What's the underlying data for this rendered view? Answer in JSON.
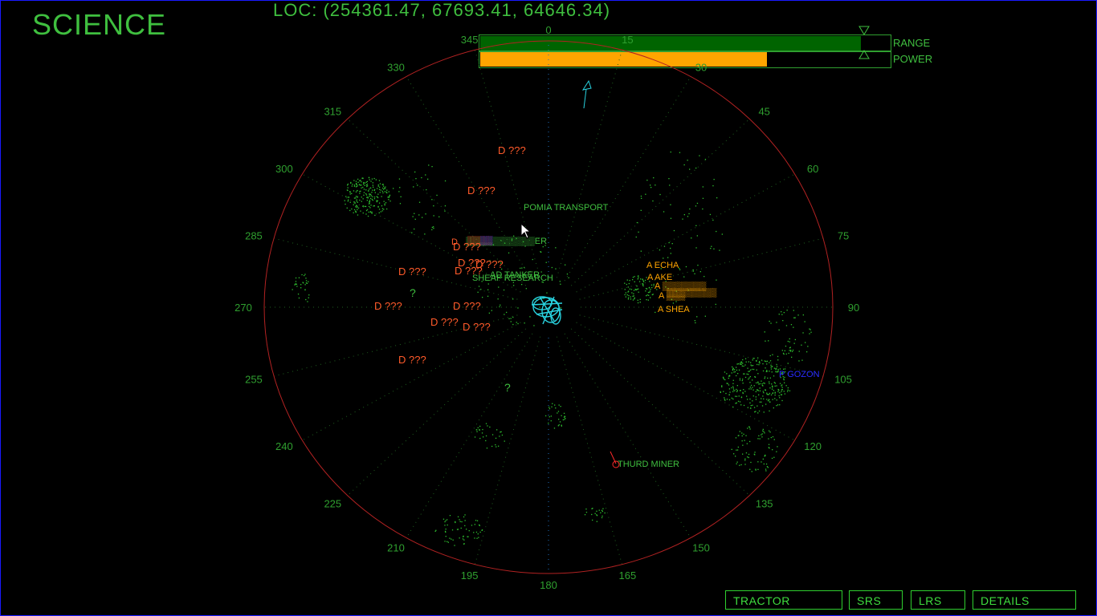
{
  "screen": {
    "title": "SCIENCE",
    "location": "LOC: (254361.47, 67693.41, 64646.34)"
  },
  "sliders": {
    "range": {
      "label": "RANGE",
      "level": 0.93,
      "color": "#006400"
    },
    "power": {
      "label": "POWER",
      "level": 0.7,
      "color": "#ffa500"
    }
  },
  "radar": {
    "ring_color": "#b22222",
    "bearings": [
      "0",
      "15",
      "30",
      "45",
      "60",
      "75",
      "90",
      "105",
      "120",
      "135",
      "150",
      "165",
      "180",
      "195",
      "210",
      "225",
      "240",
      "255",
      "270",
      "285",
      "300",
      "315",
      "330",
      "345"
    ],
    "contacts": [
      {
        "name": "D ???",
        "color": "#ff5a2a"
      },
      {
        "name": "D ???",
        "color": "#ff5a2a"
      },
      {
        "name": "POMIA TRANSPORT",
        "color": "#3fbf3f"
      },
      {
        "name": "D ???",
        "color": "#ff5a2a"
      },
      {
        "name": "D ???",
        "color": "#ff5a2a"
      },
      {
        "name": "D ???",
        "color": "#ff5a2a"
      },
      {
        "name": "D ???",
        "color": "#ff5a2a"
      },
      {
        "name": "D ???",
        "color": "#ff5a2a"
      },
      {
        "name": "D ???",
        "color": "#ff5a2a"
      },
      {
        "name": "D ???",
        "color": "#ff5a2a"
      },
      {
        "name": "D ???",
        "color": "#ff5a2a"
      },
      {
        "name": "D ???",
        "color": "#ff5a2a"
      },
      {
        "name": "D ???",
        "color": "#ff5a2a"
      },
      {
        "name": "AD TANKER",
        "color": "#3fbf3f"
      },
      {
        "name": "SHEAF RESEARCH",
        "color": "#3fbf3f"
      },
      {
        "name": "?",
        "color": "#3fbf3f"
      },
      {
        "name": "?",
        "color": "#3fbf3f"
      },
      {
        "name": "A ECHA",
        "color": "#ffa500"
      },
      {
        "name": "A AKE",
        "color": "#ffa500"
      },
      {
        "name": "A SHEA",
        "color": "#ffa500"
      },
      {
        "name": "P GOZON",
        "color": "#2a2aff"
      },
      {
        "name": "THURD MINER",
        "color": "#3fbf3f"
      }
    ]
  },
  "buttons": {
    "tractor": "TRACTOR",
    "srs": "SRS",
    "lrs": "LRS",
    "details": "DETAILS"
  }
}
